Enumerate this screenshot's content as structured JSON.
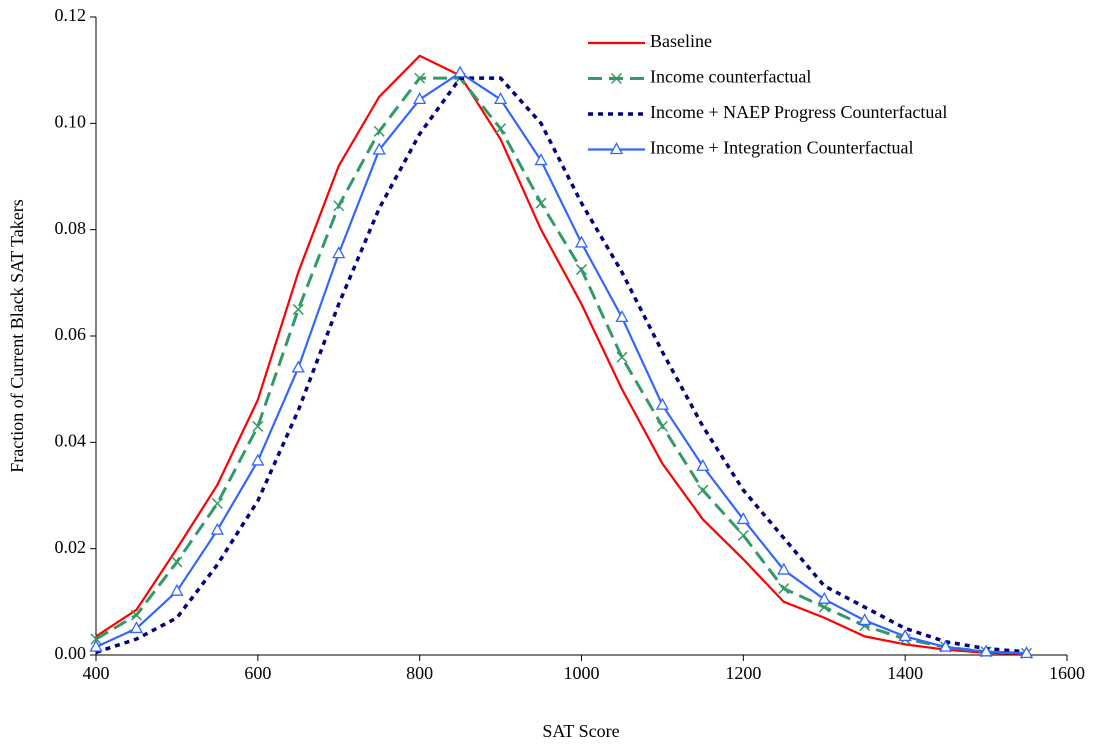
{
  "chart_data": {
    "type": "line",
    "x_label": "SAT Score",
    "y_label": "Fraction of Current Black SAT Takers",
    "x": [
      400,
      450,
      500,
      550,
      600,
      650,
      700,
      750,
      800,
      850,
      900,
      950,
      1000,
      1050,
      1100,
      1150,
      1200,
      1250,
      1300,
      1350,
      1400,
      1450,
      1500,
      1550
    ],
    "series": [
      {
        "name": "Baseline",
        "color": "#ff0000",
        "line_style": "solid",
        "marker": "none",
        "values": [
          0.0035,
          0.0085,
          0.02,
          0.032,
          0.048,
          0.072,
          0.092,
          0.105,
          0.1127,
          0.109,
          0.097,
          0.08,
          0.066,
          0.05,
          0.036,
          0.0255,
          0.018,
          0.01,
          0.007,
          0.0035,
          0.002,
          0.001,
          0.0004,
          0.0002
        ]
      },
      {
        "name": "Income counterfactual",
        "color": "#339966",
        "line_style": "dashed",
        "marker": "x",
        "values": [
          0.003,
          0.0075,
          0.0175,
          0.0285,
          0.043,
          0.065,
          0.0845,
          0.0985,
          0.1085,
          0.1085,
          0.099,
          0.085,
          0.0725,
          0.056,
          0.043,
          0.031,
          0.0225,
          0.0125,
          0.009,
          0.0055,
          0.003,
          0.0015,
          0.0006,
          0.0003
        ]
      },
      {
        "name": "Income + NAEP Progress Counterfactual",
        "color": "#000080",
        "line_style": "dotted",
        "marker": "none",
        "values": [
          0.0005,
          0.003,
          0.007,
          0.017,
          0.029,
          0.046,
          0.066,
          0.084,
          0.098,
          0.1085,
          0.1085,
          0.1,
          0.085,
          0.072,
          0.057,
          0.043,
          0.031,
          0.022,
          0.013,
          0.009,
          0.005,
          0.0025,
          0.0012,
          0.0006
        ]
      },
      {
        "name": "Income + Integration Counterfactual",
        "color": "#3366ff",
        "line_style": "solid",
        "marker": "triangle",
        "values": [
          0.0015,
          0.005,
          0.012,
          0.0235,
          0.0365,
          0.054,
          0.0755,
          0.095,
          0.1045,
          0.1095,
          0.1045,
          0.093,
          0.0775,
          0.0635,
          0.047,
          0.0355,
          0.0255,
          0.016,
          0.0105,
          0.0065,
          0.0035,
          0.0015,
          0.0006,
          0.0003
        ]
      }
    ],
    "xlim": [
      400,
      1600
    ],
    "xticks": [
      400,
      600,
      800,
      1000,
      1200,
      1400,
      1600
    ],
    "ylim": [
      0,
      0.12
    ],
    "yticks": [
      {
        "value": 0,
        "label": "0.00"
      },
      {
        "value": 0.02,
        "label": "0.02"
      },
      {
        "value": 0.04,
        "label": "0.04"
      },
      {
        "value": 0.06,
        "label": "0.06"
      },
      {
        "value": 0.08,
        "label": "0.08"
      },
      {
        "value": 0.1,
        "label": "0.10"
      },
      {
        "value": 0.12,
        "label": "0.12"
      }
    ],
    "grid": false,
    "legend": "upper right"
  }
}
